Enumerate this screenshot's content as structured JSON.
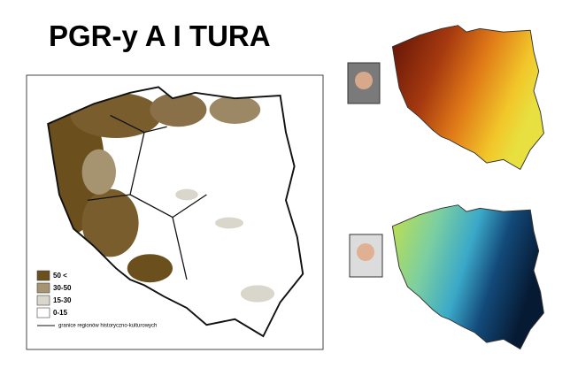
{
  "header": {
    "title": "PGR-y A I TURA"
  },
  "main_map": {
    "legend": [
      {
        "label": "50 <",
        "color": "#6b4f1d"
      },
      {
        "label": "30-50",
        "color": "#a6936f"
      },
      {
        "label": "15-30",
        "color": "#d9d6cb"
      },
      {
        "label": "0-15",
        "color": "#ffffff"
      }
    ],
    "boundary_label": "granice regionów historyczno-kulturowych"
  }
}
